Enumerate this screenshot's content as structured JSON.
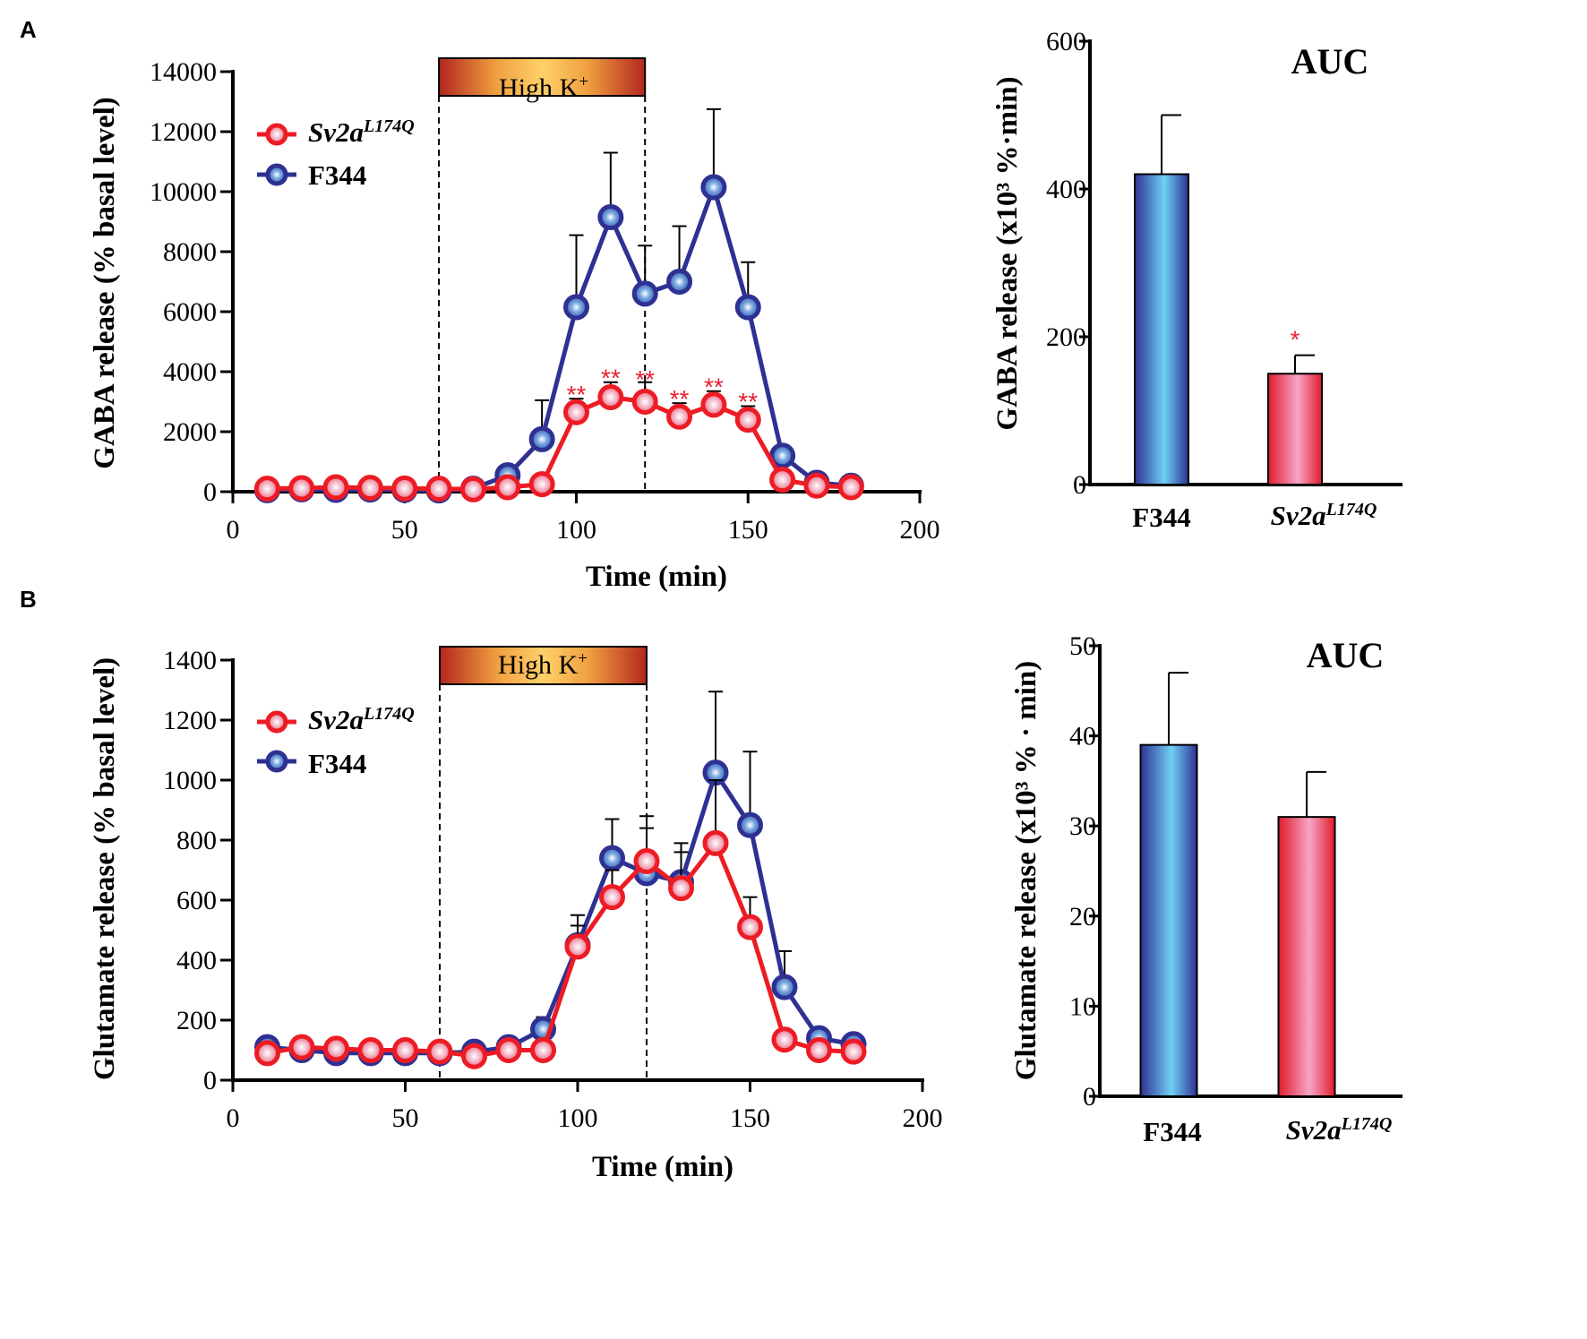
{
  "colors": {
    "sv2a": "#ed1c24",
    "f344": "#2e3192",
    "star": "#ea2030"
  },
  "panel_labels": [
    "A",
    "B"
  ],
  "chart_data": [
    {
      "id": "A-time",
      "type": "line",
      "panel": "A",
      "xlabel": "Time (min)",
      "ylabel": "GABA release (% basal level)",
      "xlim": [
        0,
        200
      ],
      "ylim": [
        0,
        14000
      ],
      "xticks": [
        0,
        50,
        100,
        150,
        200
      ],
      "yticks": [
        0,
        2000,
        4000,
        6000,
        8000,
        10000,
        12000,
        14000
      ],
      "stimulus": {
        "label": "High K",
        "superscript": "+",
        "start": 60,
        "end": 120
      },
      "legend": [
        {
          "name": "Sv2a",
          "superscript": "L174Q",
          "color": "#ed1c24"
        },
        {
          "name": "F344",
          "superscript": "",
          "color": "#2e3192"
        }
      ],
      "x": [
        10,
        20,
        30,
        40,
        50,
        60,
        70,
        80,
        90,
        100,
        110,
        120,
        130,
        140,
        150,
        160,
        170,
        180
      ],
      "series": [
        {
          "name": "F344",
          "color": "#2e3192",
          "values": [
            50,
            80,
            60,
            70,
            60,
            40,
            100,
            550,
            1750,
            6150,
            9150,
            6600,
            7000,
            10150,
            6150,
            1200,
            300,
            200
          ],
          "errors": [
            0,
            0,
            0,
            0,
            0,
            0,
            0,
            0,
            1300,
            2400,
            2150,
            1600,
            1850,
            2600,
            1500,
            0,
            0,
            0
          ]
        },
        {
          "name": "Sv2a L174Q",
          "color": "#ed1c24",
          "values": [
            100,
            120,
            150,
            130,
            110,
            100,
            80,
            150,
            250,
            2650,
            3150,
            3000,
            2500,
            2900,
            2400,
            400,
            200,
            150
          ],
          "errors": [
            0,
            0,
            0,
            0,
            0,
            0,
            0,
            0,
            0,
            450,
            500,
            650,
            450,
            450,
            450,
            0,
            0,
            0
          ]
        }
      ],
      "annotations": [
        {
          "x": 100,
          "y": 3200,
          "text": "**"
        },
        {
          "x": 110,
          "y": 3750,
          "text": "**"
        },
        {
          "x": 120,
          "y": 3700,
          "text": "**"
        },
        {
          "x": 130,
          "y": 3050,
          "text": "**"
        },
        {
          "x": 140,
          "y": 3450,
          "text": "**"
        },
        {
          "x": 150,
          "y": 2950,
          "text": "**"
        }
      ]
    },
    {
      "id": "A-auc",
      "type": "bar",
      "panel": "A",
      "title": "AUC",
      "ylabel": "GABA release (x10³ %·min)",
      "ylim": [
        0,
        600
      ],
      "yticks": [
        0,
        200,
        400,
        600
      ],
      "categories": [
        {
          "name": "F344",
          "superscript": ""
        },
        {
          "name": "Sv2a",
          "superscript": "L174Q"
        }
      ],
      "values": [
        420,
        150
      ],
      "errors": [
        80,
        25
      ],
      "colors": [
        "#2e3192",
        "#ed1c24"
      ],
      "annotations": [
        {
          "category_index": 1,
          "text": "*"
        }
      ]
    },
    {
      "id": "B-time",
      "type": "line",
      "panel": "B",
      "xlabel": "Time (min)",
      "ylabel": "Glutamate release (% basal level)",
      "xlim": [
        0,
        200
      ],
      "ylim": [
        0,
        1400
      ],
      "xticks": [
        0,
        50,
        100,
        150,
        200
      ],
      "yticks": [
        0,
        200,
        400,
        600,
        800,
        1000,
        1200,
        1400
      ],
      "stimulus": {
        "label": "High K",
        "superscript": "+",
        "start": 60,
        "end": 120
      },
      "legend": [
        {
          "name": "Sv2a",
          "superscript": "L174Q",
          "color": "#ed1c24"
        },
        {
          "name": "F344",
          "superscript": "",
          "color": "#2e3192"
        }
      ],
      "x": [
        10,
        20,
        30,
        40,
        50,
        60,
        70,
        80,
        90,
        100,
        110,
        120,
        130,
        140,
        150,
        160,
        170,
        180
      ],
      "series": [
        {
          "name": "F344",
          "color": "#2e3192",
          "values": [
            110,
            100,
            90,
            90,
            90,
            90,
            95,
            110,
            170,
            450,
            740,
            690,
            660,
            1025,
            850,
            310,
            140,
            120
          ],
          "errors": [
            0,
            0,
            0,
            0,
            0,
            0,
            0,
            0,
            40,
            100,
            130,
            150,
            130,
            270,
            245,
            120,
            0,
            0
          ]
        },
        {
          "name": "Sv2a L174Q",
          "color": "#ed1c24",
          "values": [
            90,
            110,
            105,
            100,
            100,
            95,
            80,
            100,
            100,
            445,
            610,
            730,
            640,
            790,
            510,
            135,
            100,
            95
          ],
          "errors": [
            0,
            0,
            0,
            0,
            0,
            0,
            0,
            0,
            0,
            70,
            90,
            150,
            120,
            210,
            100,
            0,
            0,
            0
          ]
        }
      ]
    },
    {
      "id": "B-auc",
      "type": "bar",
      "panel": "B",
      "title": "AUC",
      "ylabel": "Glutamate release (x10³ % · min)",
      "ylim": [
        0,
        50
      ],
      "yticks": [
        0,
        10,
        20,
        30,
        40,
        50
      ],
      "categories": [
        {
          "name": "F344",
          "superscript": ""
        },
        {
          "name": "Sv2a",
          "superscript": "L174Q"
        }
      ],
      "values": [
        39,
        31
      ],
      "errors": [
        8,
        5
      ],
      "colors": [
        "#2e3192",
        "#ed1c24"
      ]
    }
  ]
}
